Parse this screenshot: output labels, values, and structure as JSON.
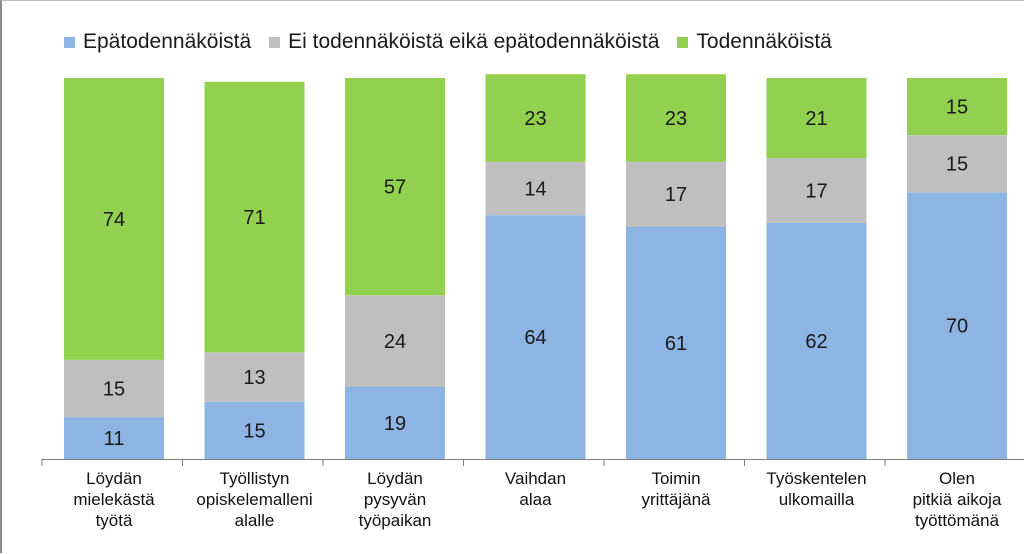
{
  "chart_data": {
    "type": "bar",
    "stacked": true,
    "categories": [
      "Löydän\nmielekästä\ntyötä",
      "Työllistyn\nopiskelemalleni\nalalle",
      "Löydän\npysyvän\ntyöpaikan",
      "Vaihdan\nalaa",
      "Toimin\nyrittäjänä",
      "Työskentelen\nulkomailla",
      "Olen\npitkiä aikoja\ntyöttömänä"
    ],
    "series": [
      {
        "name": "Epätodennäköistä",
        "color": "#8db4e2",
        "values": [
          11,
          15,
          19,
          64,
          61,
          62,
          70
        ]
      },
      {
        "name": "Ei todennäköistä eikä epätodennäköistä",
        "color": "#bfbfbf",
        "values": [
          15,
          13,
          24,
          14,
          17,
          17,
          15
        ]
      },
      {
        "name": "Todennäköistä",
        "color": "#92d050",
        "values": [
          74,
          71,
          57,
          23,
          23,
          21,
          15
        ]
      }
    ],
    "ylim": [
      0,
      100
    ],
    "legend": "top",
    "grid": false,
    "data_labels": true
  }
}
